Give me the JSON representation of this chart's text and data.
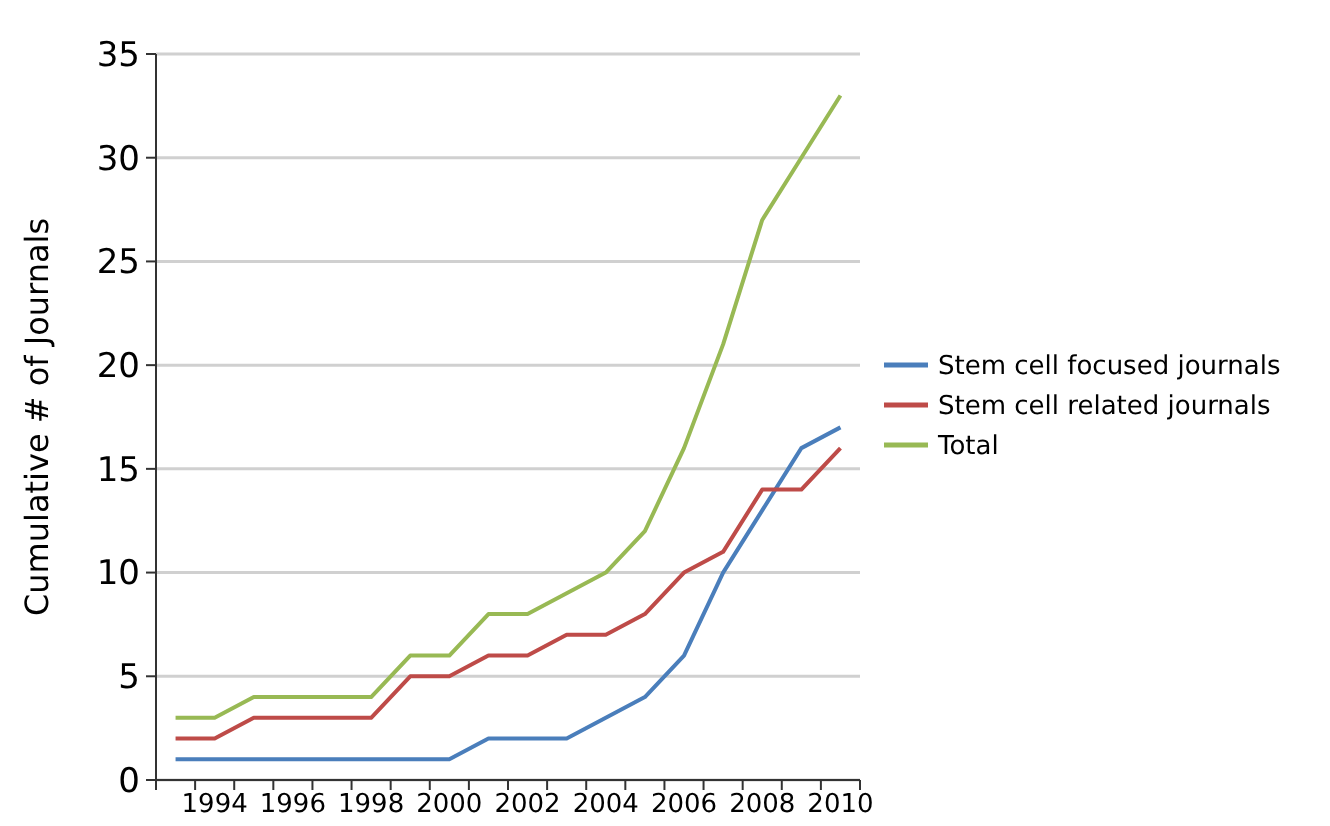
{
  "chart_data": {
    "type": "line",
    "ylabel": "Cumulative # of Journals",
    "categories": [
      null,
      "1994",
      null,
      "1996",
      null,
      "1998",
      null,
      "2000",
      null,
      "2002",
      null,
      "2004",
      null,
      "2006",
      null,
      "2008",
      null,
      "2010"
    ],
    "series": [
      {
        "name": "Stem cell focused journals",
        "color": "#4a7ebb",
        "values": [
          1,
          1,
          1,
          1,
          1,
          1,
          1,
          1,
          2,
          2,
          2,
          3,
          4,
          6,
          10,
          13,
          16,
          17
        ]
      },
      {
        "name": "Stem cell related journals",
        "color": "#be4b48",
        "values": [
          2,
          2,
          3,
          3,
          3,
          3,
          5,
          5,
          6,
          6,
          7,
          7,
          8,
          10,
          11,
          14,
          14,
          16
        ]
      },
      {
        "name": "Total",
        "color": "#98b954",
        "values": [
          3,
          3,
          4,
          4,
          4,
          4,
          6,
          6,
          8,
          8,
          9,
          10,
          12,
          16,
          21,
          27,
          30,
          33
        ]
      }
    ],
    "ylim": [
      0,
      35
    ],
    "yticks": [
      0,
      5,
      10,
      15,
      20,
      25,
      30,
      35
    ],
    "grid": "y",
    "legend": "right",
    "marker": "none",
    "line_style": "solid"
  }
}
